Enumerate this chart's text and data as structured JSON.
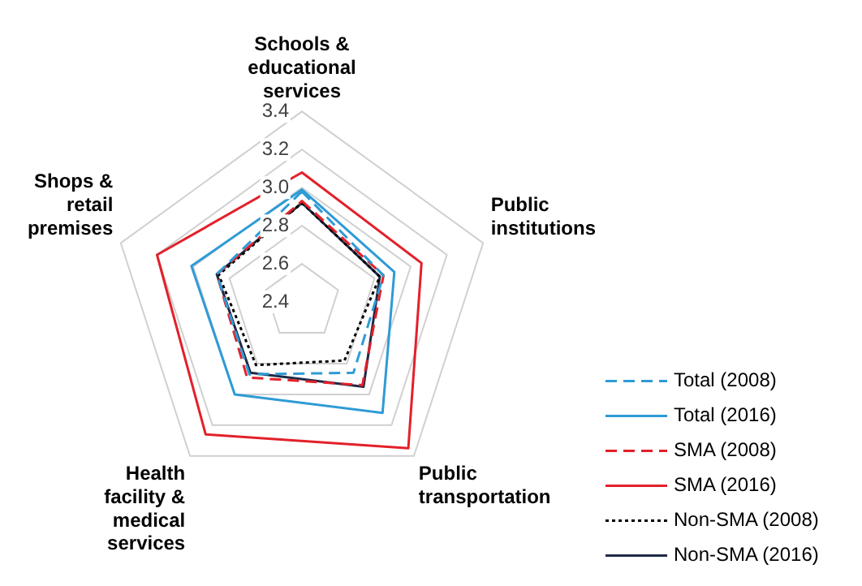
{
  "chart_data": {
    "type": "radar",
    "categories": [
      "Schools & educational services",
      "Public institutions",
      "Public transportation",
      "Health facility & medical services",
      "Shops & retail premises"
    ],
    "ylim": [
      2.4,
      3.4
    ],
    "yticks": [
      2.4,
      2.6,
      2.8,
      {
        "value": 3,
        "label": "3.0"
      },
      3.2,
      3.4
    ],
    "grid": true,
    "legend": "bottom right",
    "marker": "none",
    "series": [
      {
        "name": "Total (2008)",
        "color": "#2e9bd6",
        "line_style": "dashed",
        "values": [
          2.98,
          2.85,
          2.86,
          2.87,
          2.87
        ]
      },
      {
        "name": "Total (2016)",
        "color": "#2e9bd6",
        "line_style": "solid",
        "values": [
          2.99,
          2.91,
          3.12,
          3.0,
          3.01
        ]
      },
      {
        "name": "SMA (2008)",
        "color": "#e3202a",
        "line_style": "dashed",
        "values": [
          2.93,
          2.85,
          2.94,
          2.89,
          2.87
        ]
      },
      {
        "name": "SMA (2016)",
        "color": "#e3202a",
        "line_style": "solid",
        "values": [
          3.08,
          3.06,
          3.35,
          3.26,
          3.2
        ]
      },
      {
        "name": "Non-SMA (2008)",
        "color": "#000000",
        "line_style": "dotted",
        "values": [
          2.92,
          2.83,
          2.78,
          2.81,
          2.86
        ]
      },
      {
        "name": "Non-SMA (2016)",
        "color": "#1f2a44",
        "line_style": "solid",
        "values": [
          2.92,
          2.83,
          2.95,
          2.86,
          2.87
        ]
      }
    ]
  }
}
